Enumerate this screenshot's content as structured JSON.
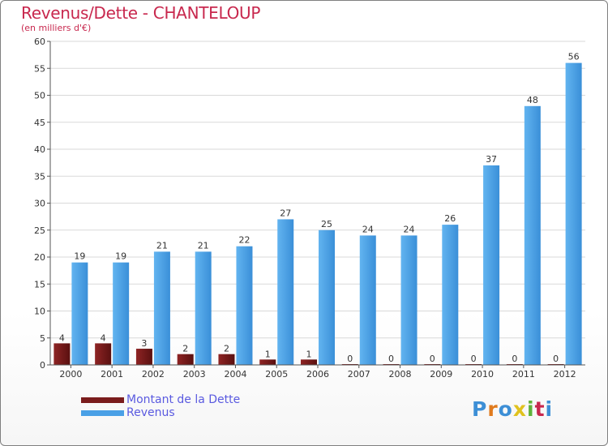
{
  "header": {
    "title": "Revenus/Dette - CHANTELOUP",
    "subtitle": "(en milliers d'€)"
  },
  "legend": {
    "items": [
      {
        "label": "Montant de la Dette",
        "color": "#7a1c1c"
      },
      {
        "label": "Revenus",
        "color": "#4aa0e6"
      }
    ]
  },
  "logo": {
    "text": "Proxiti",
    "letter_colors": [
      "#3d8fd6",
      "#e07b1e",
      "#3d8fd6",
      "#e0c21e",
      "#5fb23a",
      "#c8284e",
      "#3d8fd6"
    ]
  },
  "chart_data": {
    "type": "bar",
    "title": "Revenus/Dette - CHANTELOUP",
    "ylabel": "(en milliers d'€)",
    "ylim": [
      0,
      60
    ],
    "yticks": [
      0,
      5,
      10,
      15,
      20,
      25,
      30,
      35,
      40,
      45,
      50,
      55,
      60
    ],
    "grid": true,
    "categories": [
      "2000",
      "2001",
      "2002",
      "2003",
      "2004",
      "2005",
      "2006",
      "2007",
      "2008",
      "2009",
      "2010",
      "2011",
      "2012"
    ],
    "series": [
      {
        "name": "Montant de la Dette",
        "color": "#7a1c1c",
        "values": [
          4,
          4,
          3,
          2,
          2,
          1,
          1,
          0,
          0,
          0,
          0,
          0,
          0
        ]
      },
      {
        "name": "Revenus",
        "color": "#4aa0e6",
        "values": [
          19,
          19,
          21,
          21,
          22,
          27,
          25,
          24,
          24,
          26,
          37,
          48,
          56
        ]
      }
    ]
  }
}
